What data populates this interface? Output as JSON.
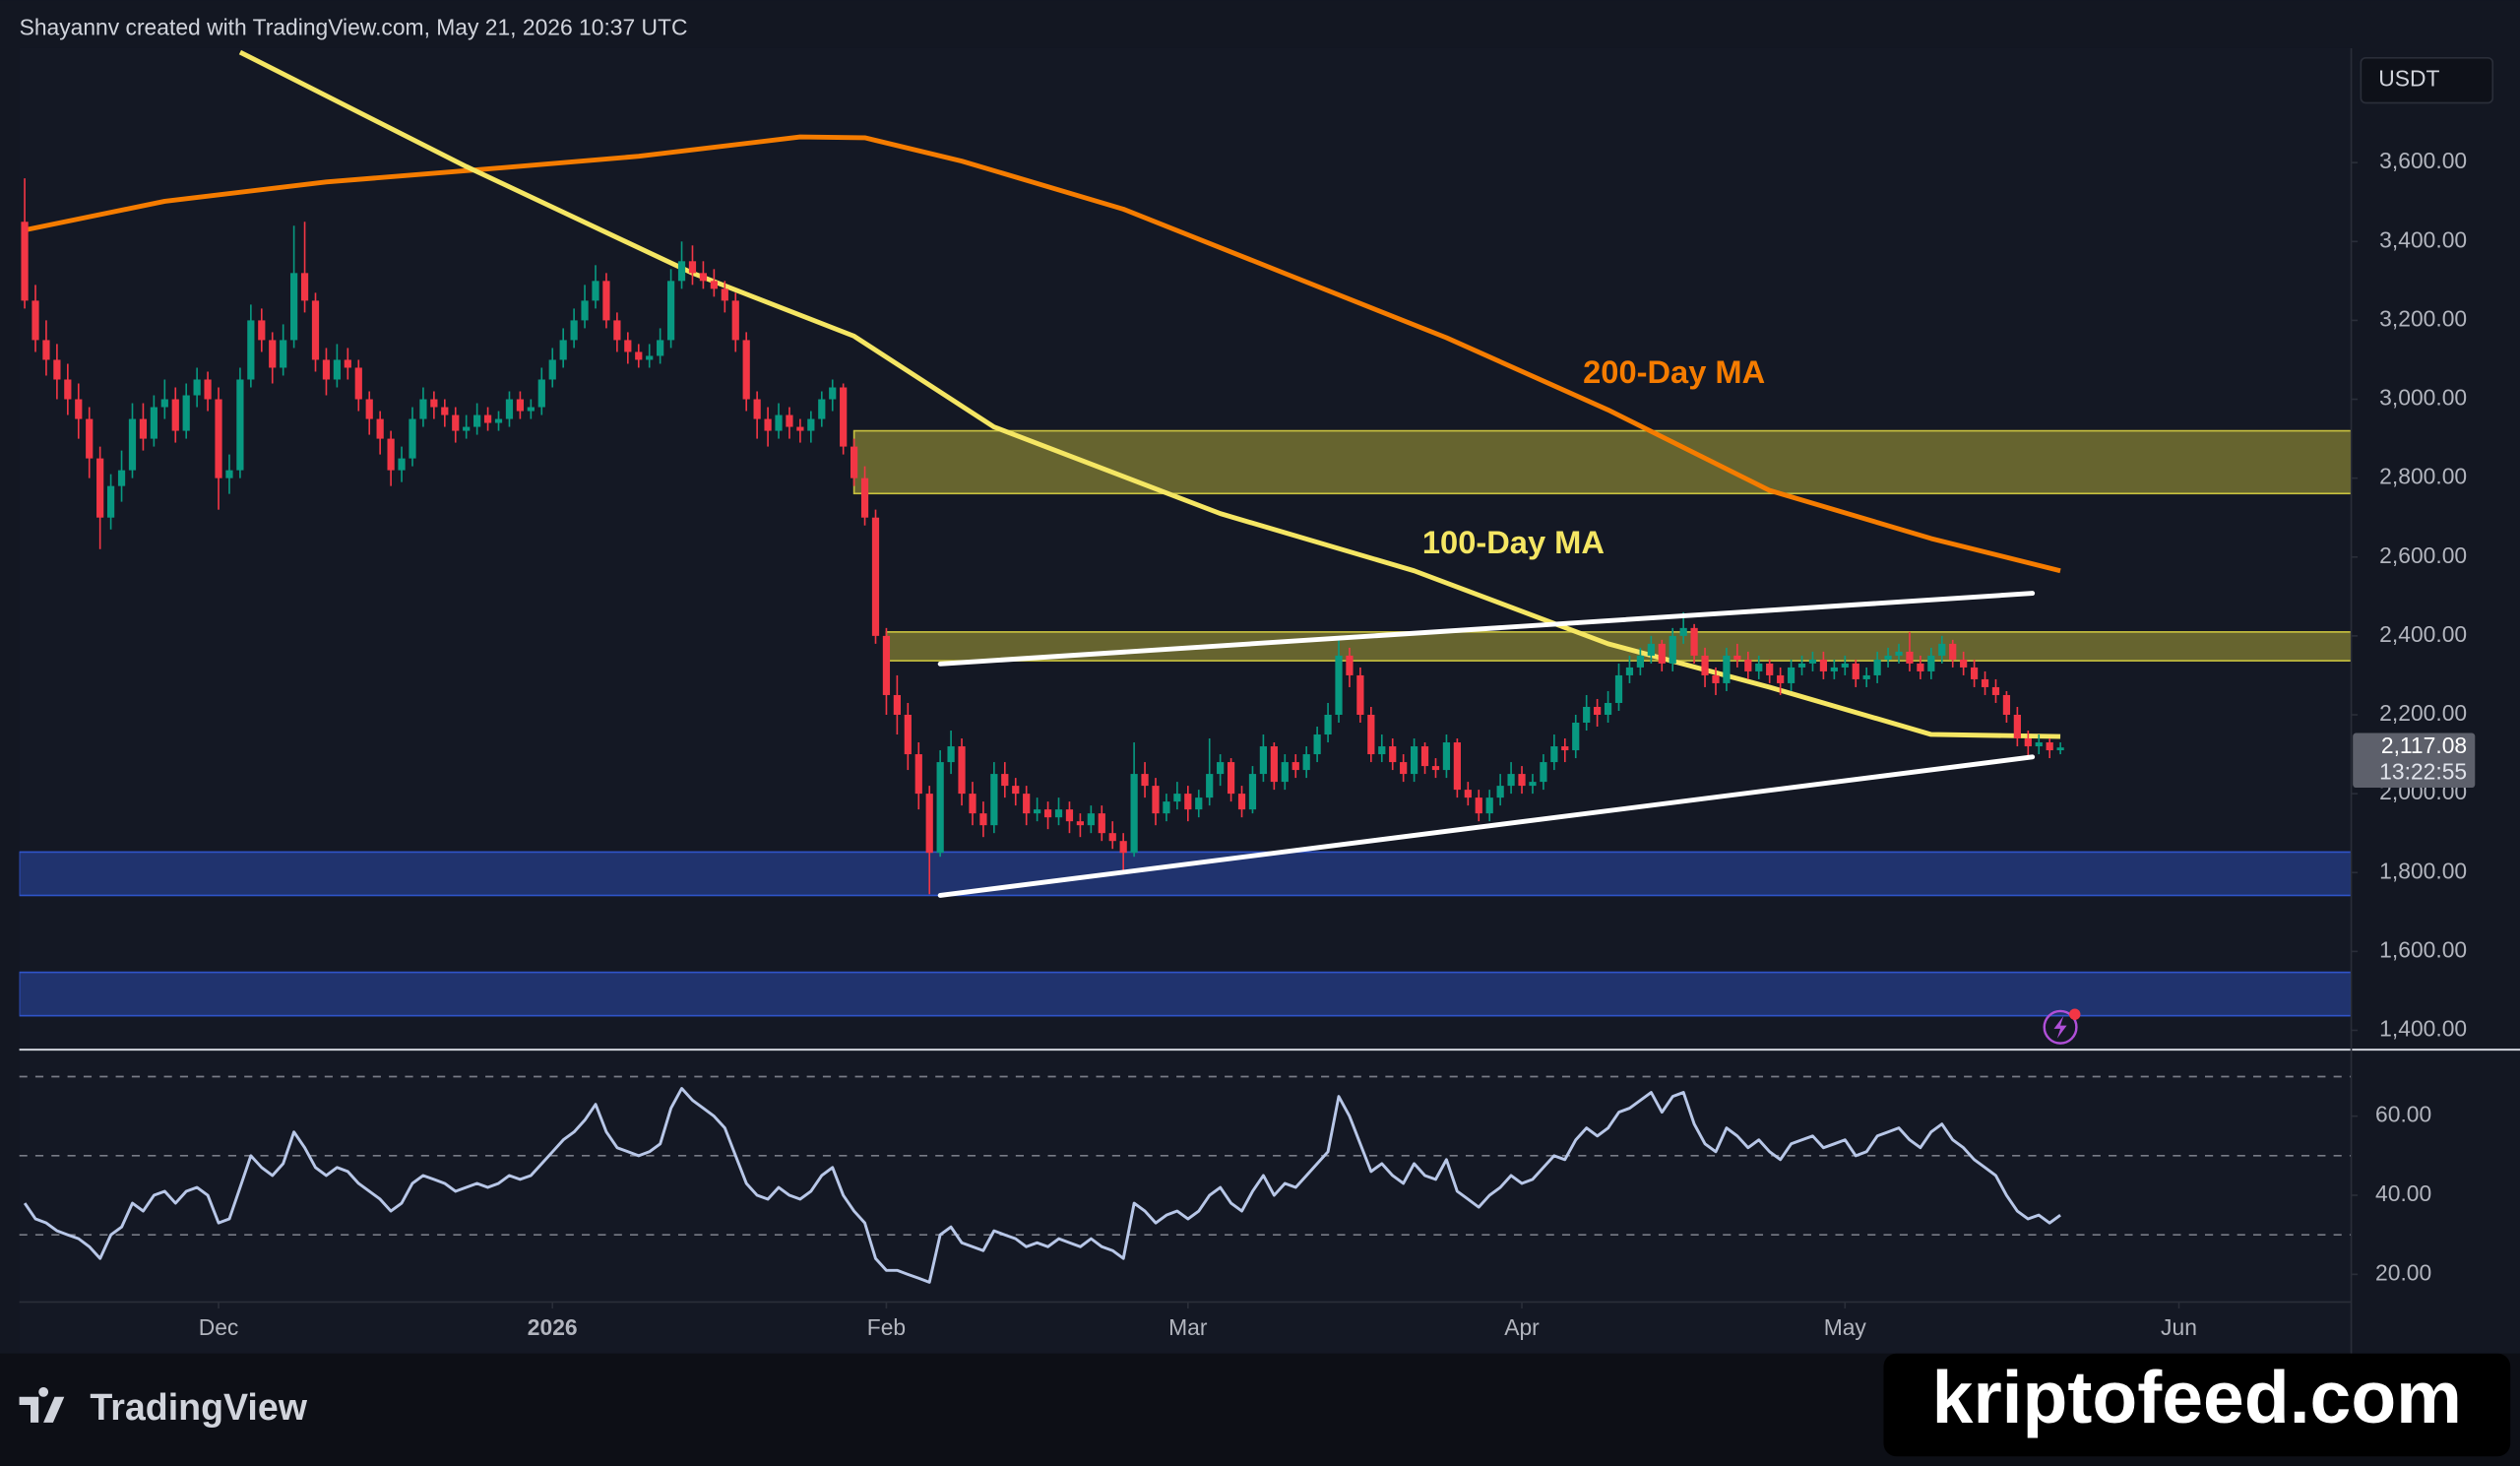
{
  "header": "Shayannv created with TradingView.com, May 21, 2026 10:37 UTC",
  "footer_brand": "TradingView",
  "watermark": "kriptofeed.com",
  "chart_data": {
    "type": "candlestick",
    "currency": "USDT",
    "last_price_label": "2,117.08",
    "countdown": "13:22:55",
    "up_color": "#089981",
    "down_color": "#f23645",
    "xlim": [
      -0.5,
      216
    ],
    "xticks": [
      {
        "value": 18,
        "label": "Dec"
      },
      {
        "value": 49,
        "label": "2026"
      },
      {
        "value": 80,
        "label": "Feb"
      },
      {
        "value": 108,
        "label": "Mar"
      },
      {
        "value": 139,
        "label": "Apr"
      },
      {
        "value": 169,
        "label": "May"
      },
      {
        "value": 200,
        "label": "Jun"
      }
    ],
    "ylim": [
      1355,
      3890
    ],
    "yticks": [
      {
        "value": 1400,
        "label": "1,400.00"
      },
      {
        "value": 1600,
        "label": "1,600.00"
      },
      {
        "value": 1800,
        "label": "1,800.00"
      },
      {
        "value": 2000,
        "label": "2,000.00"
      },
      {
        "value": 2200,
        "label": "2,200.00"
      },
      {
        "value": 2400,
        "label": "2,400.00"
      },
      {
        "value": 2600,
        "label": "2,600.00"
      },
      {
        "value": 2800,
        "label": "2,800.00"
      },
      {
        "value": 3000,
        "label": "3,000.00"
      },
      {
        "value": 3200,
        "label": "3,200.00"
      },
      {
        "value": 3400,
        "label": "3,400.00"
      },
      {
        "value": 3600,
        "label": "3,600.00"
      }
    ],
    "candles": [
      [
        3450,
        3560,
        3230,
        3250
      ],
      [
        3250,
        3290,
        3120,
        3150
      ],
      [
        3150,
        3200,
        3060,
        3100
      ],
      [
        3100,
        3140,
        3000,
        3050
      ],
      [
        3050,
        3090,
        2960,
        3000
      ],
      [
        3000,
        3040,
        2900,
        2950
      ],
      [
        2950,
        2980,
        2800,
        2850
      ],
      [
        2850,
        2880,
        2620,
        2700
      ],
      [
        2700,
        2810,
        2670,
        2780
      ],
      [
        2780,
        2870,
        2740,
        2820
      ],
      [
        2820,
        2990,
        2800,
        2950
      ],
      [
        2950,
        2990,
        2870,
        2900
      ],
      [
        2900,
        3010,
        2880,
        2980
      ],
      [
        2980,
        3050,
        2950,
        3000
      ],
      [
        3000,
        3030,
        2890,
        2920
      ],
      [
        2920,
        3040,
        2900,
        3010
      ],
      [
        3010,
        3080,
        2980,
        3050
      ],
      [
        3050,
        3070,
        2970,
        3000
      ],
      [
        3000,
        3030,
        2720,
        2800
      ],
      [
        2800,
        2860,
        2760,
        2820
      ],
      [
        2820,
        3080,
        2800,
        3050
      ],
      [
        3050,
        3240,
        3030,
        3200
      ],
      [
        3200,
        3230,
        3120,
        3150
      ],
      [
        3150,
        3170,
        3040,
        3080
      ],
      [
        3080,
        3190,
        3060,
        3150
      ],
      [
        3150,
        3440,
        3130,
        3320
      ],
      [
        3320,
        3450,
        3220,
        3250
      ],
      [
        3250,
        3270,
        3070,
        3100
      ],
      [
        3100,
        3130,
        3010,
        3050
      ],
      [
        3050,
        3140,
        3030,
        3100
      ],
      [
        3100,
        3130,
        3050,
        3080
      ],
      [
        3080,
        3100,
        2970,
        3000
      ],
      [
        3000,
        3020,
        2910,
        2950
      ],
      [
        2950,
        2970,
        2860,
        2900
      ],
      [
        2900,
        2920,
        2780,
        2820
      ],
      [
        2820,
        2880,
        2790,
        2850
      ],
      [
        2850,
        2980,
        2830,
        2950
      ],
      [
        2950,
        3030,
        2930,
        3000
      ],
      [
        3000,
        3020,
        2950,
        2980
      ],
      [
        2980,
        3000,
        2930,
        2960
      ],
      [
        2960,
        2980,
        2890,
        2920
      ],
      [
        2920,
        2960,
        2900,
        2930
      ],
      [
        2930,
        2990,
        2910,
        2960
      ],
      [
        2960,
        2980,
        2920,
        2940
      ],
      [
        2940,
        2970,
        2920,
        2950
      ],
      [
        2950,
        3020,
        2930,
        3000
      ],
      [
        3000,
        3020,
        2950,
        2970
      ],
      [
        2970,
        3000,
        2950,
        2980
      ],
      [
        2980,
        3080,
        2960,
        3050
      ],
      [
        3050,
        3130,
        3030,
        3100
      ],
      [
        3100,
        3180,
        3080,
        3150
      ],
      [
        3150,
        3230,
        3130,
        3200
      ],
      [
        3200,
        3290,
        3180,
        3250
      ],
      [
        3250,
        3340,
        3230,
        3300
      ],
      [
        3300,
        3320,
        3180,
        3200
      ],
      [
        3200,
        3220,
        3120,
        3150
      ],
      [
        3150,
        3170,
        3090,
        3120
      ],
      [
        3120,
        3140,
        3080,
        3100
      ],
      [
        3100,
        3140,
        3080,
        3110
      ],
      [
        3110,
        3180,
        3090,
        3150
      ],
      [
        3150,
        3330,
        3130,
        3300
      ],
      [
        3300,
        3400,
        3280,
        3350
      ],
      [
        3350,
        3390,
        3290,
        3320
      ],
      [
        3320,
        3350,
        3280,
        3300
      ],
      [
        3300,
        3330,
        3260,
        3280
      ],
      [
        3280,
        3300,
        3220,
        3250
      ],
      [
        3250,
        3270,
        3120,
        3150
      ],
      [
        3150,
        3170,
        2970,
        3000
      ],
      [
        3000,
        3020,
        2900,
        2950
      ],
      [
        2950,
        2980,
        2880,
        2920
      ],
      [
        2920,
        2990,
        2900,
        2960
      ],
      [
        2960,
        2980,
        2900,
        2930
      ],
      [
        2930,
        2950,
        2890,
        2920
      ],
      [
        2920,
        2970,
        2890,
        2950
      ],
      [
        2950,
        3020,
        2930,
        3000
      ],
      [
        3000,
        3050,
        2970,
        3030
      ],
      [
        3030,
        3040,
        2860,
        2880
      ],
      [
        2880,
        2900,
        2780,
        2800
      ],
      [
        2800,
        2830,
        2680,
        2700
      ],
      [
        2700,
        2720,
        2380,
        2400
      ],
      [
        2400,
        2420,
        2200,
        2250
      ],
      [
        2250,
        2300,
        2150,
        2200
      ],
      [
        2200,
        2230,
        2060,
        2100
      ],
      [
        2100,
        2130,
        1960,
        2000
      ],
      [
        2000,
        2020,
        1745,
        1850
      ],
      [
        1850,
        2110,
        1840,
        2080
      ],
      [
        2080,
        2160,
        2050,
        2120
      ],
      [
        2120,
        2140,
        1970,
        2000
      ],
      [
        2000,
        2030,
        1920,
        1950
      ],
      [
        1950,
        1980,
        1890,
        1920
      ],
      [
        1920,
        2080,
        1900,
        2050
      ],
      [
        2050,
        2080,
        1990,
        2020
      ],
      [
        2020,
        2040,
        1970,
        2000
      ],
      [
        2000,
        2020,
        1920,
        1950
      ],
      [
        1950,
        1990,
        1930,
        1960
      ],
      [
        1960,
        1980,
        1910,
        1940
      ],
      [
        1940,
        1990,
        1920,
        1960
      ],
      [
        1960,
        1980,
        1900,
        1930
      ],
      [
        1930,
        1950,
        1890,
        1920
      ],
      [
        1920,
        1970,
        1900,
        1950
      ],
      [
        1950,
        1970,
        1880,
        1900
      ],
      [
        1900,
        1930,
        1860,
        1880
      ],
      [
        1880,
        1900,
        1800,
        1850
      ],
      [
        1850,
        2130,
        1840,
        2050
      ],
      [
        2050,
        2080,
        1990,
        2020
      ],
      [
        2020,
        2040,
        1920,
        1950
      ],
      [
        1950,
        2000,
        1930,
        1980
      ],
      [
        1980,
        2030,
        1960,
        2000
      ],
      [
        2000,
        2020,
        1930,
        1960
      ],
      [
        1960,
        2010,
        1940,
        1990
      ],
      [
        1990,
        2140,
        1970,
        2050
      ],
      [
        2050,
        2100,
        2020,
        2080
      ],
      [
        2080,
        2090,
        1980,
        2000
      ],
      [
        2000,
        2020,
        1940,
        1960
      ],
      [
        1960,
        2070,
        1950,
        2050
      ],
      [
        2050,
        2150,
        2030,
        2120
      ],
      [
        2120,
        2130,
        2010,
        2030
      ],
      [
        2030,
        2100,
        2010,
        2080
      ],
      [
        2080,
        2100,
        2040,
        2060
      ],
      [
        2060,
        2120,
        2040,
        2100
      ],
      [
        2100,
        2170,
        2080,
        2150
      ],
      [
        2150,
        2230,
        2130,
        2200
      ],
      [
        2200,
        2390,
        2180,
        2350
      ],
      [
        2350,
        2370,
        2270,
        2300
      ],
      [
        2300,
        2320,
        2180,
        2200
      ],
      [
        2200,
        2220,
        2080,
        2100
      ],
      [
        2100,
        2150,
        2080,
        2120
      ],
      [
        2120,
        2140,
        2060,
        2080
      ],
      [
        2080,
        2100,
        2030,
        2050
      ],
      [
        2050,
        2140,
        2030,
        2120
      ],
      [
        2120,
        2130,
        2050,
        2070
      ],
      [
        2070,
        2090,
        2040,
        2060
      ],
      [
        2060,
        2150,
        2040,
        2130
      ],
      [
        2130,
        2140,
        1990,
        2010
      ],
      [
        2010,
        2030,
        1970,
        1990
      ],
      [
        1990,
        2010,
        1930,
        1950
      ],
      [
        1950,
        2010,
        1930,
        1990
      ],
      [
        1990,
        2050,
        1970,
        2020
      ],
      [
        2020,
        2080,
        2000,
        2050
      ],
      [
        2050,
        2070,
        2000,
        2020
      ],
      [
        2020,
        2050,
        2000,
        2030
      ],
      [
        2030,
        2100,
        2010,
        2080
      ],
      [
        2080,
        2150,
        2060,
        2120
      ],
      [
        2120,
        2140,
        2080,
        2110
      ],
      [
        2110,
        2200,
        2090,
        2180
      ],
      [
        2180,
        2250,
        2160,
        2220
      ],
      [
        2220,
        2240,
        2170,
        2200
      ],
      [
        2200,
        2260,
        2180,
        2230
      ],
      [
        2230,
        2330,
        2210,
        2300
      ],
      [
        2300,
        2350,
        2280,
        2320
      ],
      [
        2320,
        2370,
        2300,
        2350
      ],
      [
        2350,
        2400,
        2330,
        2380
      ],
      [
        2380,
        2390,
        2310,
        2330
      ],
      [
        2330,
        2420,
        2310,
        2400
      ],
      [
        2400,
        2460,
        2380,
        2420
      ],
      [
        2420,
        2430,
        2330,
        2350
      ],
      [
        2350,
        2370,
        2270,
        2300
      ],
      [
        2300,
        2320,
        2250,
        2280
      ],
      [
        2280,
        2370,
        2260,
        2350
      ],
      [
        2350,
        2380,
        2320,
        2340
      ],
      [
        2340,
        2360,
        2290,
        2310
      ],
      [
        2310,
        2350,
        2290,
        2330
      ],
      [
        2330,
        2340,
        2280,
        2300
      ],
      [
        2300,
        2320,
        2250,
        2280
      ],
      [
        2280,
        2340,
        2260,
        2320
      ],
      [
        2320,
        2350,
        2300,
        2330
      ],
      [
        2330,
        2360,
        2310,
        2340
      ],
      [
        2340,
        2360,
        2290,
        2310
      ],
      [
        2310,
        2340,
        2290,
        2320
      ],
      [
        2320,
        2350,
        2300,
        2330
      ],
      [
        2330,
        2340,
        2270,
        2290
      ],
      [
        2290,
        2320,
        2270,
        2300
      ],
      [
        2300,
        2360,
        2280,
        2340
      ],
      [
        2340,
        2370,
        2320,
        2350
      ],
      [
        2350,
        2380,
        2330,
        2360
      ],
      [
        2360,
        2410,
        2310,
        2330
      ],
      [
        2330,
        2350,
        2290,
        2310
      ],
      [
        2310,
        2370,
        2290,
        2350
      ],
      [
        2350,
        2400,
        2330,
        2380
      ],
      [
        2380,
        2390,
        2320,
        2340
      ],
      [
        2340,
        2360,
        2300,
        2320
      ],
      [
        2320,
        2340,
        2270,
        2290
      ],
      [
        2290,
        2310,
        2250,
        2270
      ],
      [
        2270,
        2290,
        2230,
        2250
      ],
      [
        2250,
        2260,
        2180,
        2200
      ],
      [
        2200,
        2220,
        2120,
        2140
      ],
      [
        2140,
        2160,
        2090,
        2120
      ],
      [
        2120,
        2150,
        2100,
        2130
      ],
      [
        2130,
        2140,
        2090,
        2110
      ],
      [
        2110,
        2130,
        2100,
        2117.08
      ]
    ],
    "series": [
      {
        "name": "200-Day MA",
        "color": "#f57c00",
        "x": [
          0,
          13,
          28,
          43,
          57,
          72,
          78,
          87,
          102,
          117,
          132,
          147,
          162,
          177,
          189
        ],
        "values": [
          3429,
          3502,
          3551,
          3584,
          3616,
          3665,
          3663,
          3604,
          3482,
          3319,
          3156,
          2973,
          2769,
          2647,
          2565
        ]
      },
      {
        "name": "100-Day MA",
        "color": "#f5e663",
        "x": [
          20,
          41,
          62,
          77,
          90,
          111,
          129,
          147,
          162,
          177,
          189
        ],
        "values": [
          3880,
          3590,
          3320,
          3160,
          2930,
          2710,
          2565,
          2380,
          2270,
          2150,
          2145
        ]
      }
    ],
    "zones": [
      {
        "from": 2761,
        "to": 2920,
        "start": 77,
        "color": "#c9c23f"
      },
      {
        "from": 2337,
        "to": 2410,
        "start": 80,
        "color": "#c9c23f"
      },
      {
        "from": 1742,
        "to": 1852,
        "start": -0.5,
        "color": "#2f54c9"
      },
      {
        "from": 1437,
        "to": 1547,
        "start": -0.5,
        "color": "#2f54c9"
      }
    ],
    "trendlines": [
      {
        "x": [
          85,
          186.4
        ],
        "y": [
          2329,
          2508
        ]
      },
      {
        "x": [
          85,
          186.4
        ],
        "y": [
          1742,
          2093
        ]
      }
    ],
    "rsi": {
      "color": "#b8c7e8",
      "ylim": [
        13,
        76
      ],
      "levels": [
        30,
        50,
        70
      ],
      "yticks": [
        {
          "value": 20,
          "label": "20.00"
        },
        {
          "value": 40,
          "label": "40.00"
        },
        {
          "value": 60,
          "label": "60.00"
        }
      ],
      "values": [
        38,
        34,
        33,
        31,
        30,
        29,
        27,
        24,
        30,
        32,
        38,
        36,
        40,
        41,
        38,
        41,
        42,
        40,
        33,
        34,
        42,
        50,
        47,
        45,
        48,
        56,
        52,
        47,
        45,
        47,
        46,
        43,
        41,
        39,
        36,
        38,
        43,
        45,
        44,
        43,
        41,
        42,
        43,
        42,
        43,
        45,
        44,
        45,
        48,
        51,
        54,
        56,
        59,
        63,
        56,
        52,
        51,
        50,
        51,
        53,
        62,
        67,
        64,
        62,
        60,
        57,
        50,
        43,
        40,
        39,
        42,
        40,
        39,
        41,
        45,
        47,
        40,
        36,
        33,
        24,
        21,
        21,
        20,
        19,
        18,
        30,
        32,
        28,
        27,
        26,
        31,
        30,
        29,
        27,
        28,
        27,
        29,
        28,
        27,
        29,
        27,
        26,
        24,
        38,
        36,
        33,
        35,
        36,
        34,
        36,
        40,
        42,
        38,
        36,
        41,
        45,
        40,
        43,
        42,
        45,
        48,
        51,
        65,
        60,
        53,
        46,
        48,
        45,
        43,
        48,
        45,
        44,
        49,
        41,
        39,
        37,
        40,
        42,
        45,
        43,
        44,
        47,
        50,
        49,
        54,
        57,
        55,
        57,
        61,
        62,
        64,
        66,
        61,
        65,
        66,
        58,
        53,
        51,
        57,
        55,
        52,
        54,
        51,
        49,
        53,
        54,
        55,
        52,
        53,
        54,
        50,
        51,
        55,
        56,
        57,
        54,
        52,
        56,
        58,
        54,
        52,
        49,
        47,
        45,
        40,
        36,
        34,
        35,
        33,
        35
      ]
    }
  }
}
